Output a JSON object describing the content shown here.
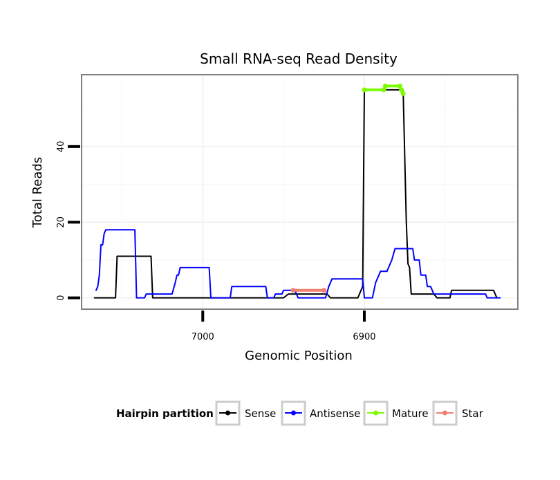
{
  "chart_data": {
    "type": "line",
    "title": "Small RNA-seq Read Density",
    "xlabel": "Genomic Position",
    "ylabel": "Total Reads",
    "x_reversed": true,
    "xlim": [
      7075,
      6805
    ],
    "ylim": [
      -3,
      59
    ],
    "x_ticks": [
      7000,
      6900
    ],
    "y_ticks": [
      0,
      20,
      40
    ],
    "grid": true,
    "legend": {
      "title": "Hairpin partition",
      "placement": "bottom",
      "entries": [
        {
          "name": "Sense",
          "color": "#000000"
        },
        {
          "name": "Antisense",
          "color": "#0000ff"
        },
        {
          "name": "Mature",
          "color": "#7cfc00"
        },
        {
          "name": "Star",
          "color": "#f08070"
        }
      ]
    },
    "series": [
      {
        "name": "Sense",
        "color": "#000000",
        "points": [
          [
            7067,
            0
          ],
          [
            7054,
            0
          ],
          [
            7053,
            11
          ],
          [
            7032,
            11
          ],
          [
            7031,
            0
          ],
          [
            6950,
            0
          ],
          [
            6947,
            1
          ],
          [
            6923,
            1
          ],
          [
            6921,
            0
          ],
          [
            6904,
            0
          ],
          [
            6901,
            3
          ],
          [
            6900,
            55
          ],
          [
            6876,
            55
          ],
          [
            6874,
            20
          ],
          [
            6873,
            9
          ],
          [
            6872,
            8
          ],
          [
            6871,
            1
          ],
          [
            6857,
            1
          ],
          [
            6855,
            0
          ],
          [
            6847,
            0
          ],
          [
            6846,
            2
          ],
          [
            6820,
            2
          ],
          [
            6818,
            0
          ]
        ]
      },
      {
        "name": "Antisense",
        "color": "#0000ff",
        "points": [
          [
            7066,
            2
          ],
          [
            7065,
            3
          ],
          [
            7064,
            6
          ],
          [
            7063,
            14
          ],
          [
            7062,
            14
          ],
          [
            7061,
            17
          ],
          [
            7060,
            18
          ],
          [
            7042,
            18
          ],
          [
            7041,
            0
          ],
          [
            7036,
            0
          ],
          [
            7035,
            1
          ],
          [
            7019,
            1
          ],
          [
            7017,
            4
          ],
          [
            7016,
            6
          ],
          [
            7015,
            6
          ],
          [
            7014,
            8
          ],
          [
            6996,
            8
          ],
          [
            6995,
            0
          ],
          [
            6983,
            0
          ],
          [
            6982,
            3
          ],
          [
            6961,
            3
          ],
          [
            6960,
            0
          ],
          [
            6956,
            0
          ],
          [
            6955,
            1
          ],
          [
            6951,
            1
          ],
          [
            6950,
            2
          ],
          [
            6943,
            2
          ],
          [
            6941,
            0
          ],
          [
            6924,
            0
          ],
          [
            6922,
            3
          ],
          [
            6920,
            5
          ],
          [
            6901,
            5
          ],
          [
            6900,
            0
          ],
          [
            6895,
            0
          ],
          [
            6893,
            4
          ],
          [
            6890,
            7
          ],
          [
            6886,
            7
          ],
          [
            6883,
            10
          ],
          [
            6881,
            13
          ],
          [
            6870,
            13
          ],
          [
            6869,
            10
          ],
          [
            6866,
            10
          ],
          [
            6865,
            6
          ],
          [
            6862,
            6
          ],
          [
            6861,
            3
          ],
          [
            6859,
            3
          ],
          [
            6857,
            1
          ],
          [
            6825,
            1
          ],
          [
            6824,
            0
          ],
          [
            6816,
            0
          ]
        ]
      },
      {
        "name": "Mature",
        "color": "#7cfc00",
        "points": [
          [
            6900,
            55
          ],
          [
            6888,
            55
          ],
          [
            6887,
            56
          ],
          [
            6878,
            56
          ],
          [
            6877,
            55
          ],
          [
            6876,
            54
          ]
        ]
      },
      {
        "name": "Star",
        "color": "#f08070",
        "points": [
          [
            6944,
            2
          ],
          [
            6925,
            2
          ]
        ]
      }
    ]
  }
}
